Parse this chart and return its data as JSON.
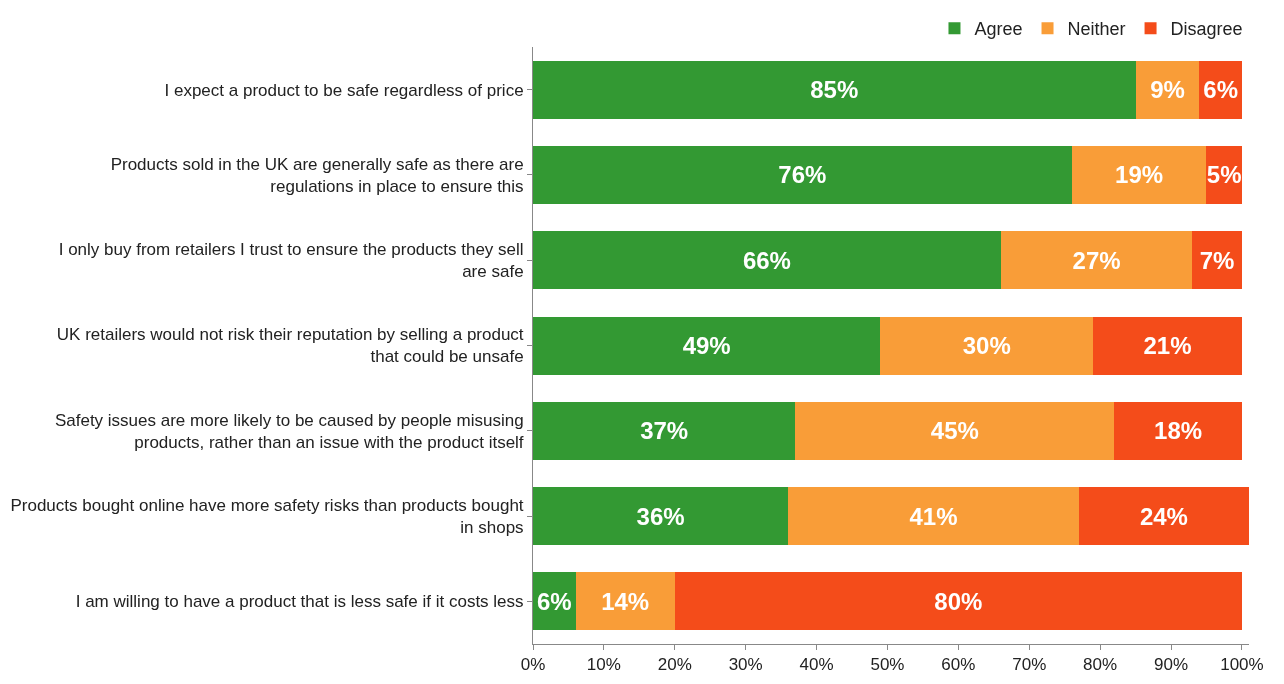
{
  "chart_data": {
    "type": "bar",
    "orientation": "horizontal",
    "stacked": true,
    "categories": [
      "I expect a product to be safe regardless of price",
      "Products sold in the UK are generally safe as there are regulations in place to ensure this",
      "I only buy from retailers I trust to ensure the products they sell are safe",
      "UK retailers would not risk their reputation by selling a product that could be unsafe",
      "Safety issues are more likely to be caused by people misusing products, rather than an issue with the product itself",
      "Products bought online have more safety risks than products bought in shops",
      "I am willing to have a product that is less safe if it costs less"
    ],
    "series": [
      {
        "name": "Agree",
        "color": "#339933",
        "values": [
          85,
          76,
          66,
          49,
          37,
          36,
          6
        ],
        "value_labels": [
          "85%",
          "76%",
          "66%",
          "49%",
          "37%",
          "36%",
          "6%"
        ]
      },
      {
        "name": "Neither",
        "color": "#f99d38",
        "values": [
          9,
          19,
          27,
          30,
          45,
          41,
          14
        ],
        "value_labels": [
          "9%",
          "19%",
          "27%",
          "30%",
          "45%",
          "41%",
          "14%"
        ]
      },
      {
        "name": "Disagree",
        "color": "#f44c1a",
        "values": [
          6,
          5,
          7,
          21,
          18,
          24,
          80
        ],
        "value_labels": [
          "6%",
          "5%",
          "7%",
          "21%",
          "18%",
          "24%",
          "80%"
        ]
      }
    ],
    "xlim": [
      0,
      101
    ],
    "xticks": [
      {
        "value": 0,
        "label": "0%"
      },
      {
        "value": 10,
        "label": "10%"
      },
      {
        "value": 20,
        "label": "20%"
      },
      {
        "value": 30,
        "label": "30%"
      },
      {
        "value": 40,
        "label": "40%"
      },
      {
        "value": 50,
        "label": "50%"
      },
      {
        "value": 60,
        "label": "60%"
      },
      {
        "value": 70,
        "label": "70%"
      },
      {
        "value": 80,
        "label": "80%"
      },
      {
        "value": 90,
        "label": "90%"
      },
      {
        "value": 100,
        "label": "100%"
      }
    ],
    "grid": false,
    "legend": "top"
  }
}
